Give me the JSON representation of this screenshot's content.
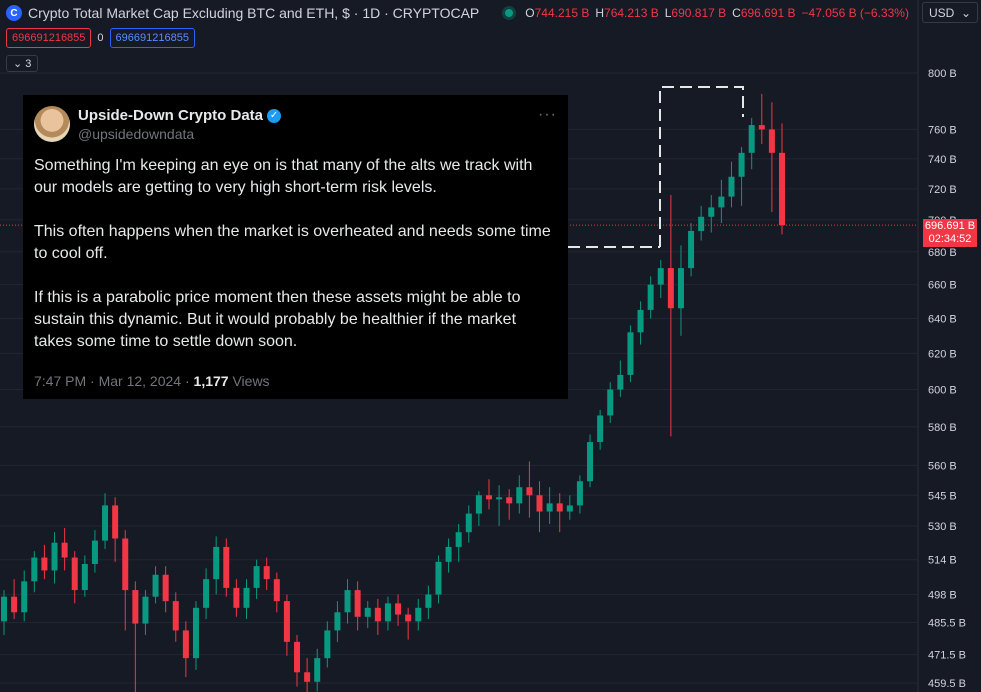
{
  "header": {
    "title": "Crypto Total Market Cap Excluding BTC and ETH, $ · 1D · CRYPTOCAP",
    "logo_glyph": "C",
    "ohlc": [
      {
        "k": "O",
        "v": "744.215 B"
      },
      {
        "k": "H",
        "v": "764.213 B"
      },
      {
        "k": "L",
        "v": "690.817 B"
      },
      {
        "k": "C",
        "v": "696.691 B"
      },
      {
        "k": "",
        "v": "−47.056 B (−6.33%)"
      }
    ],
    "currency": "USD",
    "currency_icon": "chevron-down-icon"
  },
  "indicators": {
    "red_value": "696691216855",
    "zero": "0",
    "blue_value": "696691216855",
    "collapse_count": "3"
  },
  "price_tag": {
    "price": "696.691 B",
    "countdown": "02:34:52"
  },
  "tweet": {
    "name": "Upside-Down Crypto Data",
    "handle": "@upsidedowndata",
    "more": "···",
    "paragraphs": [
      "Something I'm keeping an eye on is that many of the alts we track with our models are getting to very high short-term risk levels.",
      "This often happens when the market is overheated and needs some time to cool off.",
      "If this is a parabolic price moment then these assets might be able to sustain this dynamic. But it would probably be healthier if the market takes some time to settle down soon."
    ],
    "time": "7:47 PM · Mar 12, 2024 · ",
    "views_count": "1,177",
    "views_label": " Views"
  },
  "colors": {
    "up": "#089981",
    "down": "#f23645",
    "bg": "#161a25",
    "grid": "#232632",
    "axis_text": "#d1d4dc"
  },
  "chart_data": {
    "type": "candlestick",
    "scale": "log",
    "y_unit": "B USD",
    "yticks": [
      459.5,
      471.5,
      485.5,
      498,
      514,
      530,
      545,
      560,
      580,
      600,
      620,
      640,
      660,
      680,
      700,
      720,
      740,
      760,
      800
    ],
    "ytick_labels": [
      "459.5 B",
      "471.5 B",
      "485.5 B",
      "498 B",
      "514 B",
      "530 B",
      "545 B",
      "560 B",
      "580 B",
      "600 B",
      "620 B",
      "640 B",
      "660 B",
      "680 B",
      "700 B",
      "720 B",
      "740 B",
      "760 B",
      "800 B"
    ],
    "last_price": 696.691,
    "ylim": [
      455,
      810
    ],
    "candles": [
      [
        486,
        497,
        480,
        500
      ],
      [
        497,
        490,
        487,
        505
      ],
      [
        490,
        504,
        486,
        509
      ],
      [
        504,
        515,
        499,
        518
      ],
      [
        515,
        509,
        505,
        521
      ],
      [
        509,
        522,
        503,
        527
      ],
      [
        522,
        515,
        509,
        529
      ],
      [
        515,
        500,
        494,
        518
      ],
      [
        500,
        512,
        497,
        516
      ],
      [
        512,
        523,
        508,
        528
      ],
      [
        523,
        540,
        519,
        546
      ],
      [
        540,
        524,
        513,
        544
      ],
      [
        524,
        500,
        482,
        528
      ],
      [
        500,
        485,
        455,
        504
      ],
      [
        485,
        497,
        480,
        500
      ],
      [
        497,
        507,
        494,
        511
      ],
      [
        507,
        495,
        490,
        511
      ],
      [
        495,
        482,
        477,
        499
      ],
      [
        482,
        470,
        462,
        486
      ],
      [
        470,
        492,
        465,
        495
      ],
      [
        492,
        505,
        487,
        510
      ],
      [
        505,
        520,
        498,
        525
      ],
      [
        520,
        501,
        497,
        524
      ],
      [
        501,
        492,
        488,
        505
      ],
      [
        492,
        501,
        487,
        505
      ],
      [
        501,
        511,
        496,
        514
      ],
      [
        511,
        505,
        500,
        515
      ],
      [
        505,
        495,
        490,
        508
      ],
      [
        495,
        477,
        471,
        498
      ],
      [
        477,
        464,
        458,
        480
      ],
      [
        464,
        460,
        455,
        470
      ],
      [
        460,
        470,
        456,
        474
      ],
      [
        470,
        482,
        466,
        486
      ],
      [
        482,
        490,
        477,
        495
      ],
      [
        490,
        500,
        485,
        505
      ],
      [
        500,
        488,
        482,
        504
      ],
      [
        488,
        492,
        483,
        495
      ],
      [
        492,
        486,
        480,
        496
      ],
      [
        486,
        494,
        482,
        497
      ],
      [
        494,
        489,
        484,
        498
      ],
      [
        489,
        486,
        478,
        492
      ],
      [
        486,
        492,
        482,
        496
      ],
      [
        492,
        498,
        487,
        502
      ],
      [
        498,
        513,
        494,
        516
      ],
      [
        513,
        520,
        508,
        524
      ],
      [
        520,
        527,
        513,
        531
      ],
      [
        527,
        536,
        522,
        540
      ],
      [
        536,
        545,
        530,
        547
      ],
      [
        545,
        543,
        538,
        553
      ],
      [
        543,
        544,
        530,
        550
      ],
      [
        544,
        541,
        533,
        548
      ],
      [
        541,
        549,
        536,
        555
      ],
      [
        549,
        545,
        534,
        562
      ],
      [
        545,
        537,
        527,
        552
      ],
      [
        537,
        541,
        531,
        549
      ],
      [
        541,
        537,
        527,
        546
      ],
      [
        537,
        540,
        533,
        545
      ],
      [
        540,
        552,
        536,
        555
      ],
      [
        552,
        572,
        549,
        576
      ],
      [
        572,
        586,
        568,
        589
      ],
      [
        586,
        600,
        582,
        604
      ],
      [
        600,
        608,
        596,
        616
      ],
      [
        608,
        632,
        604,
        636
      ],
      [
        632,
        645,
        625,
        650
      ],
      [
        645,
        660,
        640,
        665
      ],
      [
        660,
        670,
        652,
        675
      ],
      [
        670,
        646,
        575,
        716
      ],
      [
        646,
        670,
        630,
        684
      ],
      [
        670,
        693,
        665,
        698
      ],
      [
        693,
        702,
        687,
        709
      ],
      [
        702,
        708,
        692,
        716
      ],
      [
        708,
        715,
        698,
        726
      ],
      [
        715,
        728,
        708,
        738
      ],
      [
        728,
        744,
        709,
        748
      ],
      [
        744,
        763,
        733,
        768
      ],
      [
        763,
        760,
        750,
        785
      ],
      [
        760,
        744,
        705,
        779
      ],
      [
        744,
        696.691,
        690.817,
        764.213
      ]
    ]
  }
}
